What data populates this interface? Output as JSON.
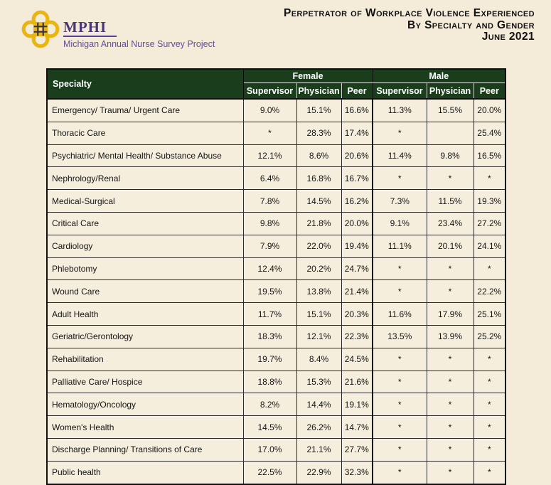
{
  "colors": {
    "page_background": "#f4ebd9",
    "header_green": "#1a3d1c",
    "cell_cream": "#f6eedd",
    "logo_gold": "#e9b513",
    "logo_purple": "#5a3f98",
    "border_dark": "#111111"
  },
  "logo": {
    "org": "MPHI",
    "subtitle": "Michigan Annual Nurse Survey Project"
  },
  "title": {
    "line1": "Perpetrator of Workplace Violence Experienced",
    "line2": "By Specialty and Gender",
    "line3": "June 2021"
  },
  "table": {
    "header": {
      "specialty": "Specialty",
      "groups": [
        {
          "label": "Female"
        },
        {
          "label": "Male"
        }
      ],
      "subheaders": [
        "Supervisor",
        "Physician",
        "Peer",
        "Supervisor",
        "Physician",
        "Peer"
      ]
    },
    "rows": [
      {
        "specialty": "Emergency/ Trauma/ Urgent Care",
        "values": [
          "9.0%",
          "15.1%",
          "16.6%",
          "11.3%",
          "15.5%",
          "20.0%"
        ]
      },
      {
        "specialty": "Thoracic Care",
        "values": [
          "*",
          "28.3%",
          "17.4%",
          "*",
          "",
          "25.4%"
        ]
      },
      {
        "specialty": "Psychiatric/ Mental Health/ Substance Abuse",
        "values": [
          "12.1%",
          "8.6%",
          "20.6%",
          "11.4%",
          "9.8%",
          "16.5%"
        ]
      },
      {
        "specialty": "Nephrology/Renal",
        "values": [
          "6.4%",
          "16.8%",
          "16.7%",
          "*",
          "*",
          "*"
        ]
      },
      {
        "specialty": "Medical-Surgical",
        "values": [
          "7.8%",
          "14.5%",
          "16.2%",
          "7.3%",
          "11.5%",
          "19.3%"
        ]
      },
      {
        "specialty": "Critical Care",
        "values": [
          "9.8%",
          "21.8%",
          "20.0%",
          "9.1%",
          "23.4%",
          "27.2%"
        ]
      },
      {
        "specialty": "Cardiology",
        "values": [
          "7.9%",
          "22.0%",
          "19.4%",
          "11.1%",
          "20.1%",
          "24.1%"
        ]
      },
      {
        "specialty": "Phlebotomy",
        "values": [
          "12.4%",
          "20.2%",
          "24.7%",
          "*",
          "*",
          "*"
        ]
      },
      {
        "specialty": "Wound Care",
        "values": [
          "19.5%",
          "13.8%",
          "21.4%",
          "*",
          "*",
          "22.2%"
        ]
      },
      {
        "specialty": "Adult Health",
        "values": [
          "11.7%",
          "15.1%",
          "20.3%",
          "11.6%",
          "17.9%",
          "25.1%"
        ]
      },
      {
        "specialty": "Geriatric/Gerontology",
        "values": [
          "18.3%",
          "12.1%",
          "22.3%",
          "13.5%",
          "13.9%",
          "25.2%"
        ]
      },
      {
        "specialty": "Rehabilitation",
        "values": [
          "19.7%",
          "8.4%",
          "24.5%",
          "*",
          "*",
          "*"
        ]
      },
      {
        "specialty": "Palliative Care/ Hospice",
        "values": [
          "18.8%",
          "15.3%",
          "21.6%",
          "*",
          "*",
          "*"
        ]
      },
      {
        "specialty": "Hematology/Oncology",
        "values": [
          "8.2%",
          "14.4%",
          "19.1%",
          "*",
          "*",
          "*"
        ]
      },
      {
        "specialty": "Women's Health",
        "values": [
          "14.5%",
          "26.2%",
          "14.7%",
          "*",
          "*",
          "*"
        ]
      },
      {
        "specialty": "Discharge Planning/ Transitions of Care",
        "values": [
          "17.0%",
          "21.1%",
          "27.7%",
          "*",
          "*",
          "*"
        ]
      },
      {
        "specialty": "Public health",
        "values": [
          "22.5%",
          "22.9%",
          "32.3%",
          "*",
          "*",
          "*"
        ]
      }
    ]
  }
}
